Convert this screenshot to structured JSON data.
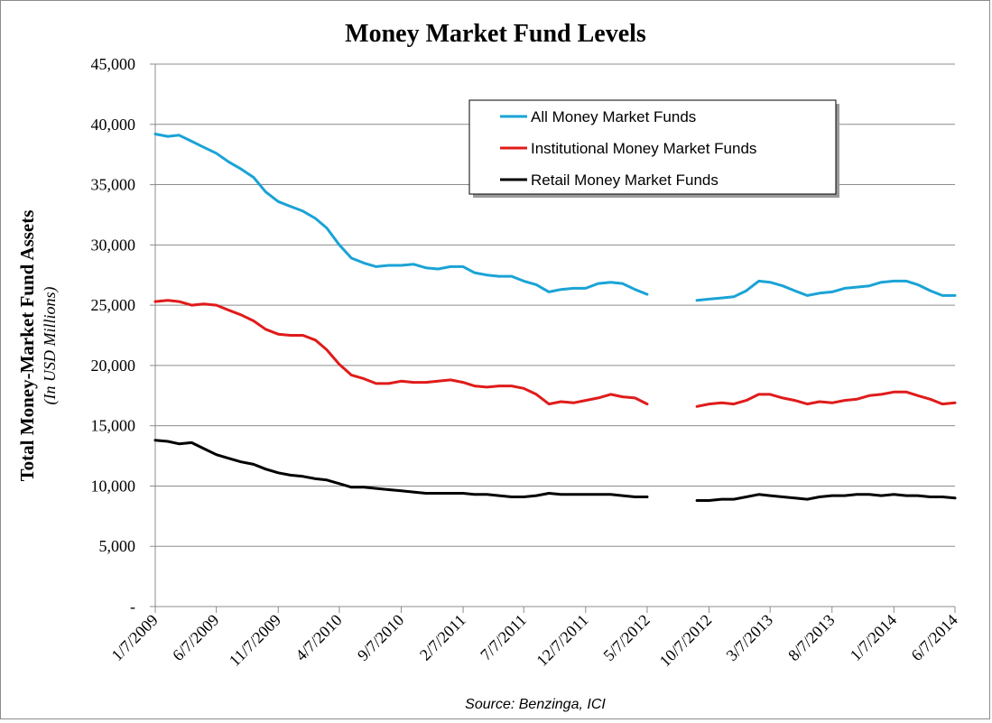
{
  "chart_data": {
    "type": "line",
    "title": "Money Market Fund Levels",
    "ylabel": "Total Money-Market Fund Assets",
    "ylabel_sub": "(In USD Millions)",
    "xlabel": "",
    "source": "Source:  Benzinga, ICI",
    "ylim": [
      0,
      45000
    ],
    "yticks": [
      0,
      5000,
      10000,
      15000,
      20000,
      25000,
      30000,
      35000,
      40000,
      45000
    ],
    "ytick_labels": [
      "-",
      "5,000",
      "10,000",
      "15,000",
      "20,000",
      "25,000",
      "30,000",
      "35,000",
      "40,000",
      "45,000"
    ],
    "xlim": [
      "1/7/2009",
      "6/7/2014"
    ],
    "xticks": [
      "1/7/2009",
      "6/7/2009",
      "11/7/2009",
      "4/7/2010",
      "9/7/2010",
      "2/7/2011",
      "7/7/2011",
      "12/7/2011",
      "5/7/2012",
      "10/7/2012",
      "3/7/2013",
      "8/7/2013",
      "1/7/2014",
      "6/7/2014"
    ],
    "grid": "horizontal",
    "legend_position": "top-right",
    "series": [
      {
        "name": "All Money Market Funds",
        "color": "#1aa3d6",
        "points": [
          [
            "1/7/2009",
            39200
          ],
          [
            "2/7/2009",
            39000
          ],
          [
            "3/7/2009",
            39100
          ],
          [
            "4/7/2009",
            38600
          ],
          [
            "5/7/2009",
            38100
          ],
          [
            "6/7/2009",
            37600
          ],
          [
            "7/7/2009",
            36900
          ],
          [
            "8/7/2009",
            36300
          ],
          [
            "9/7/2009",
            35600
          ],
          [
            "10/7/2009",
            34400
          ],
          [
            "11/7/2009",
            33600
          ],
          [
            "12/7/2009",
            33200
          ],
          [
            "1/7/2010",
            32800
          ],
          [
            "2/7/2010",
            32200
          ],
          [
            "3/7/2010",
            31400
          ],
          [
            "4/7/2010",
            30000
          ],
          [
            "5/7/2010",
            28900
          ],
          [
            "6/7/2010",
            28500
          ],
          [
            "7/7/2010",
            28200
          ],
          [
            "8/7/2010",
            28300
          ],
          [
            "9/7/2010",
            28300
          ],
          [
            "10/7/2010",
            28400
          ],
          [
            "11/7/2010",
            28100
          ],
          [
            "12/7/2010",
            28000
          ],
          [
            "1/7/2011",
            28200
          ],
          [
            "2/7/2011",
            28200
          ],
          [
            "3/7/2011",
            27700
          ],
          [
            "4/7/2011",
            27500
          ],
          [
            "5/7/2011",
            27400
          ],
          [
            "6/7/2011",
            27400
          ],
          [
            "7/7/2011",
            27000
          ],
          [
            "8/7/2011",
            26700
          ],
          [
            "9/7/2011",
            26100
          ],
          [
            "10/7/2011",
            26300
          ],
          [
            "11/7/2011",
            26400
          ],
          [
            "12/7/2011",
            26400
          ],
          [
            "1/7/2012",
            26800
          ],
          [
            "2/7/2012",
            26900
          ],
          [
            "3/7/2012",
            26800
          ],
          [
            "4/7/2012",
            26300
          ],
          [
            "5/7/2012",
            25900
          ],
          null,
          [
            "9/7/2012",
            25400
          ],
          [
            "10/7/2012",
            25500
          ],
          [
            "11/7/2012",
            25600
          ],
          [
            "12/7/2012",
            25700
          ],
          [
            "1/7/2013",
            26200
          ],
          [
            "2/7/2013",
            27000
          ],
          [
            "3/7/2013",
            26900
          ],
          [
            "4/7/2013",
            26600
          ],
          [
            "5/7/2013",
            26200
          ],
          [
            "6/7/2013",
            25800
          ],
          [
            "7/7/2013",
            26000
          ],
          [
            "8/7/2013",
            26100
          ],
          [
            "9/7/2013",
            26400
          ],
          [
            "10/7/2013",
            26500
          ],
          [
            "11/7/2013",
            26600
          ],
          [
            "12/7/2013",
            26900
          ],
          [
            "1/7/2014",
            27000
          ],
          [
            "2/7/2014",
            27000
          ],
          [
            "3/7/2014",
            26700
          ],
          [
            "4/7/2014",
            26200
          ],
          [
            "5/7/2014",
            25800
          ],
          [
            "6/7/2014",
            25800
          ]
        ]
      },
      {
        "name": "Institutional Money Market Funds",
        "color": "#e01b1b",
        "points": [
          [
            "1/7/2009",
            25300
          ],
          [
            "2/7/2009",
            25400
          ],
          [
            "3/7/2009",
            25300
          ],
          [
            "4/7/2009",
            25000
          ],
          [
            "5/7/2009",
            25100
          ],
          [
            "6/7/2009",
            25000
          ],
          [
            "7/7/2009",
            24600
          ],
          [
            "8/7/2009",
            24200
          ],
          [
            "9/7/2009",
            23700
          ],
          [
            "10/7/2009",
            23000
          ],
          [
            "11/7/2009",
            22600
          ],
          [
            "12/7/2009",
            22500
          ],
          [
            "1/7/2010",
            22500
          ],
          [
            "2/7/2010",
            22100
          ],
          [
            "3/7/2010",
            21300
          ],
          [
            "4/7/2010",
            20100
          ],
          [
            "5/7/2010",
            19200
          ],
          [
            "6/7/2010",
            18900
          ],
          [
            "7/7/2010",
            18500
          ],
          [
            "8/7/2010",
            18500
          ],
          [
            "9/7/2010",
            18700
          ],
          [
            "10/7/2010",
            18600
          ],
          [
            "11/7/2010",
            18600
          ],
          [
            "12/7/2010",
            18700
          ],
          [
            "1/7/2011",
            18800
          ],
          [
            "2/7/2011",
            18600
          ],
          [
            "3/7/2011",
            18300
          ],
          [
            "4/7/2011",
            18200
          ],
          [
            "5/7/2011",
            18300
          ],
          [
            "6/7/2011",
            18300
          ],
          [
            "7/7/2011",
            18100
          ],
          [
            "8/7/2011",
            17600
          ],
          [
            "9/7/2011",
            16800
          ],
          [
            "10/7/2011",
            17000
          ],
          [
            "11/7/2011",
            16900
          ],
          [
            "12/7/2011",
            17100
          ],
          [
            "1/7/2012",
            17300
          ],
          [
            "2/7/2012",
            17600
          ],
          [
            "3/7/2012",
            17400
          ],
          [
            "4/7/2012",
            17300
          ],
          [
            "5/7/2012",
            16800
          ],
          null,
          [
            "9/7/2012",
            16600
          ],
          [
            "10/7/2012",
            16800
          ],
          [
            "11/7/2012",
            16900
          ],
          [
            "12/7/2012",
            16800
          ],
          [
            "1/7/2013",
            17100
          ],
          [
            "2/7/2013",
            17600
          ],
          [
            "3/7/2013",
            17600
          ],
          [
            "4/7/2013",
            17300
          ],
          [
            "5/7/2013",
            17100
          ],
          [
            "6/7/2013",
            16800
          ],
          [
            "7/7/2013",
            17000
          ],
          [
            "8/7/2013",
            16900
          ],
          [
            "9/7/2013",
            17100
          ],
          [
            "10/7/2013",
            17200
          ],
          [
            "11/7/2013",
            17500
          ],
          [
            "12/7/2013",
            17600
          ],
          [
            "1/7/2014",
            17800
          ],
          [
            "2/7/2014",
            17800
          ],
          [
            "3/7/2014",
            17500
          ],
          [
            "4/7/2014",
            17200
          ],
          [
            "5/7/2014",
            16800
          ],
          [
            "6/7/2014",
            16900
          ]
        ]
      },
      {
        "name": "Retail Money Market Funds",
        "color": "#000000",
        "points": [
          [
            "1/7/2009",
            13800
          ],
          [
            "2/7/2009",
            13700
          ],
          [
            "3/7/2009",
            13500
          ],
          [
            "4/7/2009",
            13600
          ],
          [
            "5/7/2009",
            13100
          ],
          [
            "6/7/2009",
            12600
          ],
          [
            "7/7/2009",
            12300
          ],
          [
            "8/7/2009",
            12000
          ],
          [
            "9/7/2009",
            11800
          ],
          [
            "10/7/2009",
            11400
          ],
          [
            "11/7/2009",
            11100
          ],
          [
            "12/7/2009",
            10900
          ],
          [
            "1/7/2010",
            10800
          ],
          [
            "2/7/2010",
            10600
          ],
          [
            "3/7/2010",
            10500
          ],
          [
            "4/7/2010",
            10200
          ],
          [
            "5/7/2010",
            9900
          ],
          [
            "6/7/2010",
            9900
          ],
          [
            "7/7/2010",
            9800
          ],
          [
            "8/7/2010",
            9700
          ],
          [
            "9/7/2010",
            9600
          ],
          [
            "10/7/2010",
            9500
          ],
          [
            "11/7/2010",
            9400
          ],
          [
            "12/7/2010",
            9400
          ],
          [
            "1/7/2011",
            9400
          ],
          [
            "2/7/2011",
            9400
          ],
          [
            "3/7/2011",
            9300
          ],
          [
            "4/7/2011",
            9300
          ],
          [
            "5/7/2011",
            9200
          ],
          [
            "6/7/2011",
            9100
          ],
          [
            "7/7/2011",
            9100
          ],
          [
            "8/7/2011",
            9200
          ],
          [
            "9/7/2011",
            9400
          ],
          [
            "10/7/2011",
            9300
          ],
          [
            "11/7/2011",
            9300
          ],
          [
            "12/7/2011",
            9300
          ],
          [
            "1/7/2012",
            9300
          ],
          [
            "2/7/2012",
            9300
          ],
          [
            "3/7/2012",
            9200
          ],
          [
            "4/7/2012",
            9100
          ],
          [
            "5/7/2012",
            9100
          ],
          null,
          [
            "9/7/2012",
            8800
          ],
          [
            "10/7/2012",
            8800
          ],
          [
            "11/7/2012",
            8900
          ],
          [
            "12/7/2012",
            8900
          ],
          [
            "1/7/2013",
            9100
          ],
          [
            "2/7/2013",
            9300
          ],
          [
            "3/7/2013",
            9200
          ],
          [
            "4/7/2013",
            9100
          ],
          [
            "5/7/2013",
            9000
          ],
          [
            "6/7/2013",
            8900
          ],
          [
            "7/7/2013",
            9100
          ],
          [
            "8/7/2013",
            9200
          ],
          [
            "9/7/2013",
            9200
          ],
          [
            "10/7/2013",
            9300
          ],
          [
            "11/7/2013",
            9300
          ],
          [
            "12/7/2013",
            9200
          ],
          [
            "1/7/2014",
            9300
          ],
          [
            "2/7/2014",
            9200
          ],
          [
            "3/7/2014",
            9200
          ],
          [
            "4/7/2014",
            9100
          ],
          [
            "5/7/2014",
            9100
          ],
          [
            "6/7/2014",
            9000
          ]
        ]
      }
    ]
  }
}
